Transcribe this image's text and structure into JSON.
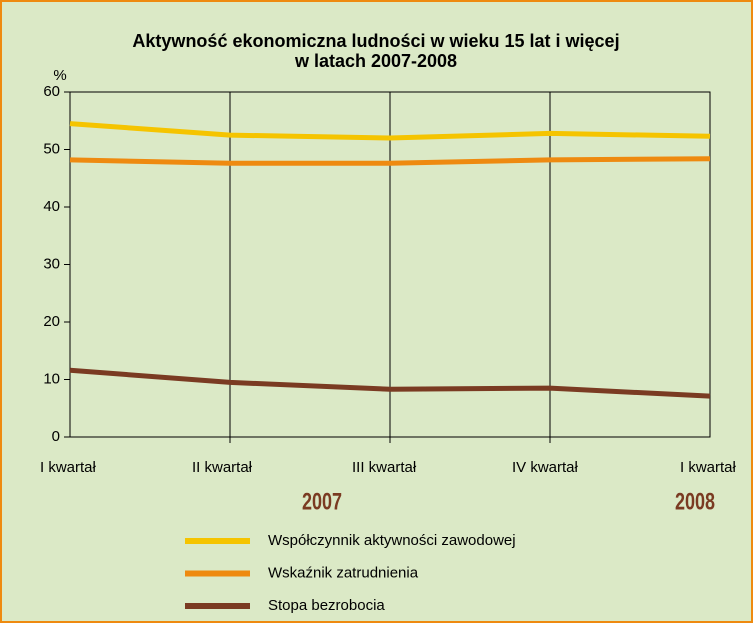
{
  "chart_data": {
    "type": "line",
    "title": "Aktywność ekonomiczna ludności w wieku 15 lat i więcej",
    "subtitle": "w latach 2007-2008",
    "y_label": "%",
    "categories": [
      "I kwartał",
      "II kwartał",
      "III kwartał",
      "IV kwartał",
      "I kwartał"
    ],
    "annotations": [
      "2007",
      "2008"
    ],
    "series": [
      {
        "name": "Współczynnik aktywności zawodowej",
        "color": "#f5c400",
        "values": [
          54.5,
          52.5,
          52.0,
          52.8,
          52.3
        ]
      },
      {
        "name": "Wskaźnik zatrudnienia",
        "color": "#ee8a10",
        "values": [
          48.2,
          47.6,
          47.6,
          48.2,
          48.4
        ]
      },
      {
        "name": "Stopa bezrobocia",
        "color": "#7a3b22",
        "values": [
          11.6,
          9.5,
          8.3,
          8.5,
          7.1
        ]
      }
    ],
    "ylim": [
      0,
      60
    ],
    "yticks": [
      0,
      10,
      20,
      30,
      40,
      50,
      60
    ],
    "grid": true,
    "legend": "bottom"
  }
}
